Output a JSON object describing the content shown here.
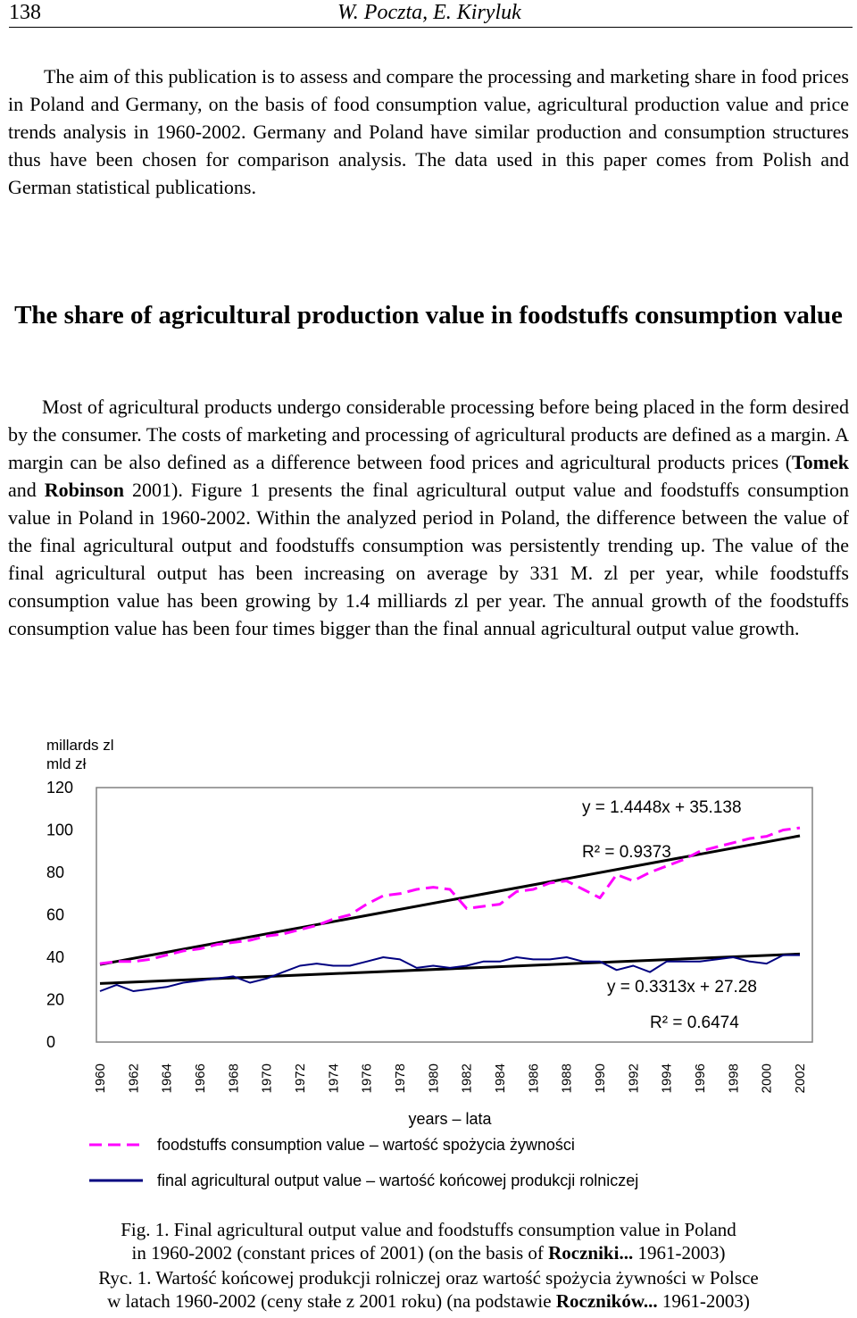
{
  "header": {
    "page_number": "138",
    "running_head": "W. Poczta, E. Kiryluk"
  },
  "intro": {
    "text": "The aim of this publication is to assess and compare the processing and marketing share in food prices in Poland and Germany, on the basis of food consumption value, agricultural production value and price trends analysis in 1960-2002. Germany and Poland have similar production and consumption structures thus have been chosen for comparison analysis. The data used in this paper comes from Polish and German statistical publications."
  },
  "section": {
    "heading": "The share of agricultural production value in foodstuffs consumption value",
    "body_1": "Most of agricultural products undergo considerable processing before being placed in the form desired by the consumer. The costs of marketing and processing of agricultural products are defined as a margin. A margin can be also defined as a difference between food prices and agricultural products prices (",
    "ref_author_1": "Tomek",
    "ref_and": " and ",
    "ref_author_2": "Robinson",
    "body_2": " 2001). Figure 1 presents the final agricultural output value and foodstuffs consumption value in Poland in 1960-2002. Within the analyzed period in Poland, the difference between the value of the final agricultural output and foodstuffs consumption was persistently trending up. The value of the final agricultural output has been increasing on average by 331 M. zl per year, while foodstuffs consumption value has been growing by 1.4 milliards zl per year. The annual growth of the foodstuffs consumption value has been four times bigger than the final annual agricultural output value growth."
  },
  "colors": {
    "consumption": "#ff00ff",
    "output": "#000080",
    "trend": "#000000",
    "axis": "#808080"
  },
  "chart_data": {
    "type": "line",
    "ylabel_1": "millards zl",
    "ylabel_2": "mld zł",
    "xlabel": "years – lata",
    "ylim": [
      0,
      120
    ],
    "yticks": [
      0,
      20,
      40,
      60,
      80,
      100,
      120
    ],
    "x": [
      1960,
      1961,
      1962,
      1963,
      1964,
      1965,
      1966,
      1967,
      1968,
      1969,
      1970,
      1971,
      1972,
      1973,
      1974,
      1975,
      1976,
      1977,
      1978,
      1979,
      1980,
      1981,
      1982,
      1983,
      1984,
      1985,
      1986,
      1987,
      1988,
      1989,
      1990,
      1991,
      1992,
      1993,
      1994,
      1995,
      1996,
      1997,
      1998,
      1999,
      2000,
      2001,
      2002
    ],
    "xtick_labels": [
      "1960",
      "1962",
      "1964",
      "1966",
      "1968",
      "1970",
      "1972",
      "1974",
      "1976",
      "1978",
      "1980",
      "1982",
      "1984",
      "1986",
      "1988",
      "1990",
      "1992",
      "1994",
      "1996",
      "1998",
      "2000",
      "2002"
    ],
    "series": [
      {
        "name": "foodstuffs consumption value – wartość spożycia żywności",
        "style": "dashed",
        "values": [
          37,
          38,
          38,
          39,
          41,
          43,
          44,
          46,
          47,
          48,
          50,
          51,
          53,
          55,
          58,
          60,
          65,
          69,
          70,
          72,
          73,
          72,
          63,
          64,
          65,
          71,
          72,
          75,
          76,
          72,
          68,
          79,
          76,
          80,
          83,
          86,
          90,
          92,
          94,
          96,
          97,
          100,
          101
        ]
      },
      {
        "name": "final agricultural output value – wartość końcowej produkcji rolniczej",
        "style": "solid",
        "values": [
          24,
          27,
          24,
          25,
          26,
          28,
          29,
          30,
          31,
          28,
          30,
          33,
          36,
          37,
          36,
          36,
          38,
          40,
          39,
          35,
          36,
          35,
          36,
          38,
          38,
          40,
          39,
          39,
          40,
          38,
          38,
          34,
          36,
          33,
          38,
          38,
          38,
          39,
          40,
          38,
          37,
          41,
          41
        ]
      }
    ],
    "trendlines": [
      {
        "equation": "y = 1.4448x + 35.138",
        "r2": "R² = 0.9373",
        "slope": 1.4448,
        "intercept": 35.138
      },
      {
        "equation": "y = 0.3313x + 27.28",
        "r2": "R² = 0.6474",
        "slope": 0.3313,
        "intercept": 27.28
      }
    ]
  },
  "caption": {
    "en_line_1": "Fig. 1. Final agricultural output value and foodstuffs consumption value in Poland",
    "en_line_2_pre": "in 1960-2002 (constant prices of 2001) (on the basis of ",
    "en_source_bold": "Roczniki...",
    "en_line_2_post": " 1961-2003)",
    "pl_line_1": "Ryc. 1. Wartość końcowej produkcji rolniczej oraz wartość spożycia żywności w Polsce",
    "pl_line_2_pre": "w latach 1960-2002 (ceny stałe z 2001 roku) (na podstawie ",
    "pl_source_bold": "Roczników...",
    "pl_line_2_post": " 1961-2003)"
  }
}
